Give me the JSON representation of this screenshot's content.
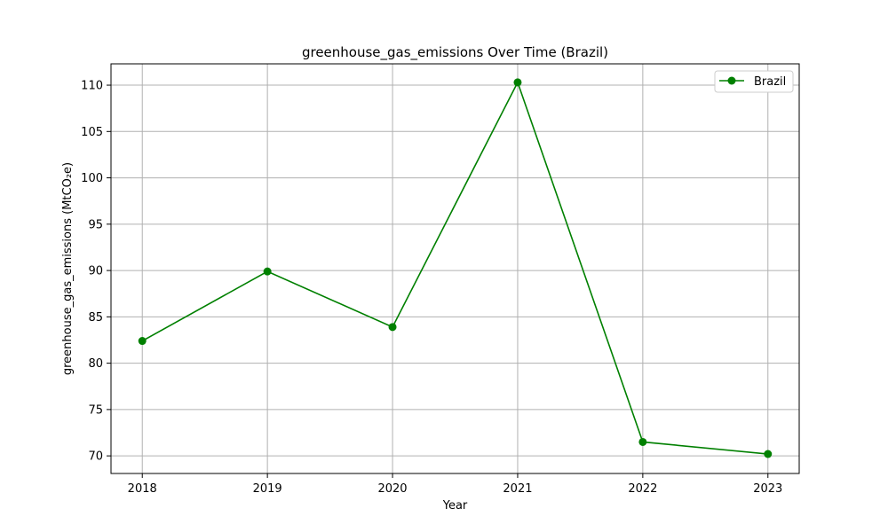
{
  "chart_data": {
    "type": "line",
    "title": "greenhouse_gas_emissions Over Time (Brazil)",
    "xlabel": "Year",
    "ylabel": "greenhouse_gas_emissions (MtCO₂e)",
    "x": [
      2018,
      2019,
      2020,
      2021,
      2022,
      2023
    ],
    "xticks": [
      2018,
      2019,
      2020,
      2021,
      2022,
      2023
    ],
    "yticks": [
      70,
      75,
      80,
      85,
      90,
      95,
      100,
      105,
      110
    ],
    "xlim": [
      2017.75,
      2023.25
    ],
    "ylim": [
      68.1,
      112.3
    ],
    "grid": true,
    "legend_position": "top-right",
    "series": [
      {
        "name": "Brazil",
        "color": "#008000",
        "marker": "circle",
        "values": [
          82.4,
          89.9,
          83.9,
          110.3,
          71.5,
          70.2
        ]
      }
    ]
  }
}
